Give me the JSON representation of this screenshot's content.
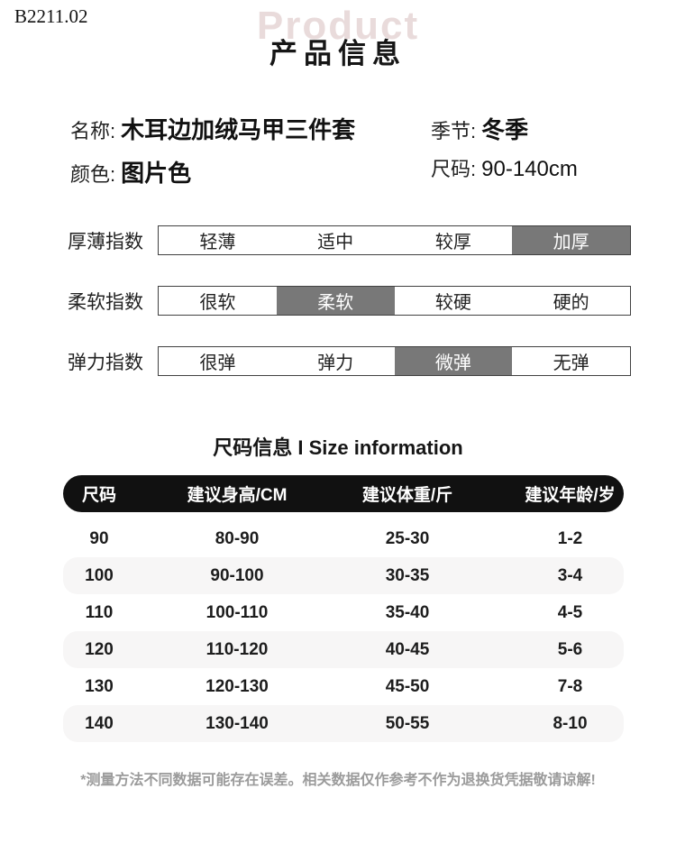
{
  "header": {
    "code": "B2211.02",
    "watermark": "Product",
    "title": "产品信息"
  },
  "info": {
    "name_label": "名称:",
    "name_value": "木耳边加绒马甲三件套",
    "season_label": "季节:",
    "season_value": "冬季",
    "color_label": "颜色:",
    "color_value": "图片色",
    "size_label": "尺码:",
    "size_value": "90-140cm"
  },
  "indexes": [
    {
      "label": "厚薄指数",
      "options": [
        "轻薄",
        "适中",
        "较厚",
        "加厚"
      ],
      "selected": 3
    },
    {
      "label": "柔软指数",
      "options": [
        "很软",
        "柔软",
        "较硬",
        "硬的"
      ],
      "selected": 1
    },
    {
      "label": "弹力指数",
      "options": [
        "很弹",
        "弹力",
        "微弹",
        "无弹"
      ],
      "selected": 2
    }
  ],
  "size_table": {
    "heading": "尺码信息 I Size information",
    "headers": [
      "尺码",
      "建议身高/CM",
      "建议体重/斤",
      "建议年龄/岁"
    ],
    "rows": [
      [
        "90",
        "80-90",
        "25-30",
        "1-2"
      ],
      [
        "100",
        "90-100",
        "30-35",
        "3-4"
      ],
      [
        "110",
        "100-110",
        "35-40",
        "4-5"
      ],
      [
        "120",
        "110-120",
        "40-45",
        "5-6"
      ],
      [
        "130",
        "120-130",
        "45-50",
        "7-8"
      ],
      [
        "140",
        "130-140",
        "50-55",
        "8-10"
      ]
    ]
  },
  "footer_note": "*测量方法不同数据可能存在误差。相关数据仅作参考不作为退换货凭据敬请谅解!",
  "colors": {
    "highlight": "#787878",
    "table_header_bg": "#111111",
    "zebra": "#f7f6f6",
    "watermark": "#e9dbdb",
    "note": "#9b9b9b"
  }
}
